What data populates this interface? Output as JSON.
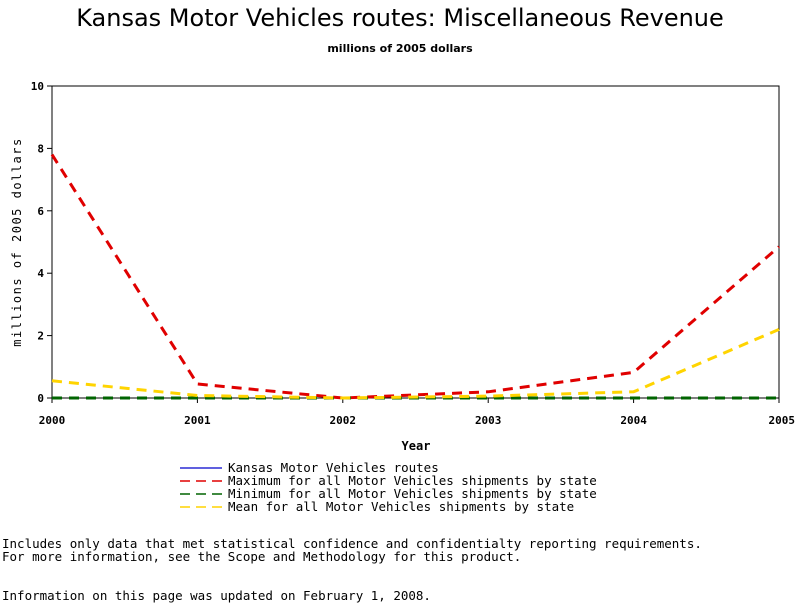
{
  "chart_data": {
    "type": "line",
    "title": "Kansas Motor Vehicles routes: Miscellaneous Revenue",
    "subtitle": "millions of 2005 dollars",
    "xlabel": "Year",
    "ylabel": "millions of 2005 dollars",
    "x": [
      2000,
      2001,
      2002,
      2003,
      2004,
      2005
    ],
    "xlim": [
      2000,
      2005
    ],
    "ylim": [
      0,
      10
    ],
    "yticks": [
      0,
      2,
      4,
      6,
      8,
      10
    ],
    "grid": false,
    "legend_position": "bottom",
    "series": [
      {
        "name": "Kansas Motor Vehicles routes",
        "color": "#0000cc",
        "dash": "solid",
        "values": [
          null,
          null,
          null,
          null,
          null,
          null
        ]
      },
      {
        "name": "Maximum for all Motor Vehicles shipments by state",
        "color": "#e00000",
        "dash": "dashed",
        "values": [
          7.8,
          0.45,
          0.0,
          0.2,
          0.82,
          4.85
        ]
      },
      {
        "name": "Minimum for all Motor Vehicles shipments by state",
        "color": "#006400",
        "dash": "dashed",
        "values": [
          0.0,
          0.0,
          0.0,
          0.0,
          0.0,
          0.0
        ]
      },
      {
        "name": "Mean for all Motor Vehicles shipments by state",
        "color": "#ffd400",
        "dash": "dashed",
        "values": [
          0.55,
          0.08,
          0.0,
          0.06,
          0.2,
          2.2
        ]
      }
    ]
  },
  "notes": {
    "line1": "Includes only data that met statistical confidence and confidentialty reporting requirements.",
    "line2": "For more information, see the Scope and Methodology for this product.",
    "line3": "Information on this page was updated on February 1, 2008."
  }
}
